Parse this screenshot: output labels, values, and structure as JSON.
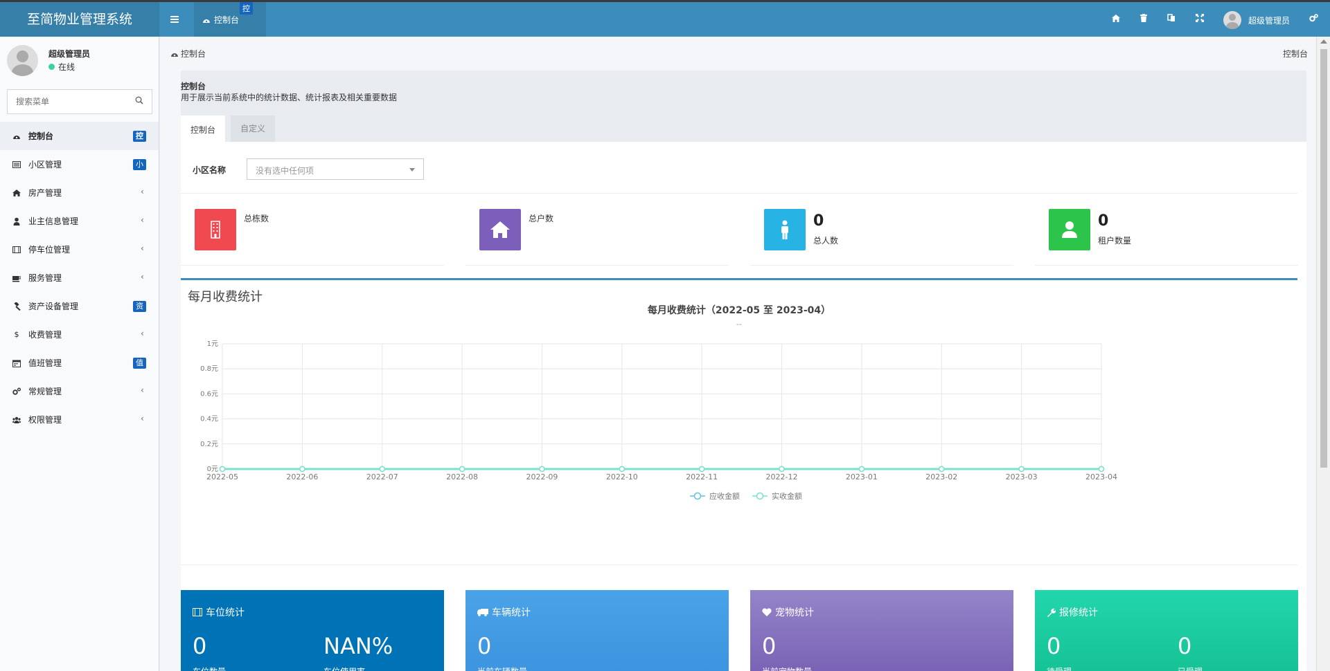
{
  "header": {
    "logo": "至简物业管理系统",
    "tab_label": "控制台",
    "tab_badge": "控",
    "user_name": "超级管理员"
  },
  "sidebar": {
    "user_name": "超级管理员",
    "status": "在线",
    "search_placeholder": "搜索菜单",
    "items": [
      {
        "label": "控制台",
        "icon": "dashboard-icon",
        "badge": "控",
        "active": true
      },
      {
        "label": "小区管理",
        "icon": "list-icon",
        "badge": "小"
      },
      {
        "label": "房产管理",
        "icon": "home-icon",
        "chevron": true
      },
      {
        "label": "业主信息管理",
        "icon": "user-icon",
        "chevron": true
      },
      {
        "label": "停车位管理",
        "icon": "film-icon",
        "chevron": true
      },
      {
        "label": "服务管理",
        "icon": "coffee-icon",
        "chevron": true
      },
      {
        "label": "资产设备管理",
        "icon": "gavel-icon",
        "badge": "资"
      },
      {
        "label": "收费管理",
        "icon": "dollar-icon",
        "chevron": true
      },
      {
        "label": "值班管理",
        "icon": "calendar-icon",
        "badge": "值"
      },
      {
        "label": "常规管理",
        "icon": "cogs-icon",
        "chevron": true
      },
      {
        "label": "权限管理",
        "icon": "group-icon",
        "chevron": true
      }
    ]
  },
  "breadcrumb": {
    "left": "控制台",
    "right": "控制台"
  },
  "panel": {
    "title": "控制台",
    "description": "用于展示当前系统中的统计数据、统计报表及相关重要数据",
    "tabs": [
      "控制台",
      "自定义"
    ]
  },
  "filter": {
    "label": "小区名称",
    "placeholder": "没有选中任何项"
  },
  "stats": [
    {
      "label": "总栋数",
      "value": "",
      "color": "#f0494f",
      "icon": "building-icon"
    },
    {
      "label": "总户数",
      "value": "",
      "color": "#7c5fba",
      "icon": "home-icon"
    },
    {
      "label": "总人数",
      "value": "0",
      "color": "#27b3e4",
      "icon": "male-icon"
    },
    {
      "label": "租户数量",
      "value": "0",
      "color": "#2cc44b",
      "icon": "user-icon"
    }
  ],
  "chart_section_title": "每月收费统计",
  "chart_data": {
    "type": "line",
    "title": "每月收费统计（2022-05 至 2023-04）",
    "subtitle": "--",
    "x": [
      "2022-05",
      "2022-06",
      "2022-07",
      "2022-08",
      "2022-09",
      "2022-10",
      "2022-11",
      "2022-12",
      "2023-01",
      "2023-02",
      "2023-03",
      "2023-04"
    ],
    "y_ticks": [
      "0元",
      "0.2元",
      "0.4元",
      "0.6元",
      "0.8元",
      "1元"
    ],
    "ylim": [
      0,
      1
    ],
    "series": [
      {
        "name": "应收金额",
        "color": "#5bc0de",
        "values": [
          0,
          0,
          0,
          0,
          0,
          0,
          0,
          0,
          0,
          0,
          0,
          0
        ]
      },
      {
        "name": "实收金额",
        "color": "#7be0cc",
        "values": [
          0,
          0,
          0,
          0,
          0,
          0,
          0,
          0,
          0,
          0,
          0,
          0
        ]
      }
    ],
    "grid": true,
    "legend": "bottom"
  },
  "cards": [
    {
      "title": "车位统计",
      "icon": "film-icon",
      "v1": "0",
      "l1": "车位数量",
      "v2": "NAN%",
      "l2": "车位使用率",
      "color": "#0073b7"
    },
    {
      "title": "车辆统计",
      "icon": "truck-icon",
      "v1": "0",
      "l1": "当前车辆数量",
      "color": "#3d9be6"
    },
    {
      "title": "宠物统计",
      "icon": "heart-icon",
      "v1": "0",
      "l1": "当前宠物数量",
      "color": "#8e7cc3"
    },
    {
      "title": "报修统计",
      "icon": "wrench-icon",
      "v1": "0",
      "l1": "待受理",
      "v2": "0",
      "l2": "已受理",
      "color": "#1dd1a1"
    }
  ]
}
